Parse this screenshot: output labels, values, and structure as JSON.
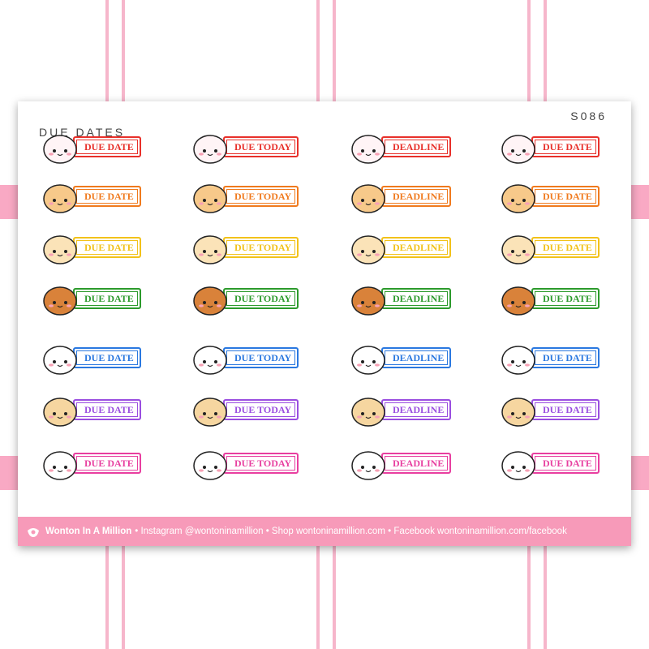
{
  "sheet": {
    "title": "DUE DATES",
    "code": "S086",
    "rows": [
      {
        "color": "#e8302a",
        "labels": [
          "DUE DATE",
          "DUE TODAY",
          "DEADLINE",
          "DUE DATE"
        ]
      },
      {
        "color": "#f07a1e",
        "labels": [
          "DUE DATE",
          "DUE TODAY",
          "DEADLINE",
          "DUE DATE"
        ]
      },
      {
        "color": "#f2c21a",
        "labels": [
          "DUE DATE",
          "DUE TODAY",
          "DEADLINE",
          "DUE DATE"
        ]
      },
      {
        "color": "#2c9a2c",
        "labels": [
          "DUE DATE",
          "DUE TODAY",
          "DEADLINE",
          "DUE DATE"
        ]
      },
      {
        "color": "#2a78e0",
        "labels": [
          "DUE DATE",
          "DUE TODAY",
          "DEADLINE",
          "DUE DATE"
        ]
      },
      {
        "color": "#9a4ee0",
        "labels": [
          "DUE DATE",
          "DUE TODAY",
          "DEADLINE",
          "DUE DATE"
        ]
      },
      {
        "color": "#e83fa0",
        "labels": [
          "DUE DATE",
          "DUE TODAY",
          "DEADLINE",
          "DUE DATE"
        ]
      }
    ]
  },
  "footer": {
    "brand": "Wonton In A Million",
    "links": "• Instagram @wontoninamillion • Shop wontoninamillion.com • Facebook wontoninamillion.com/facebook"
  }
}
